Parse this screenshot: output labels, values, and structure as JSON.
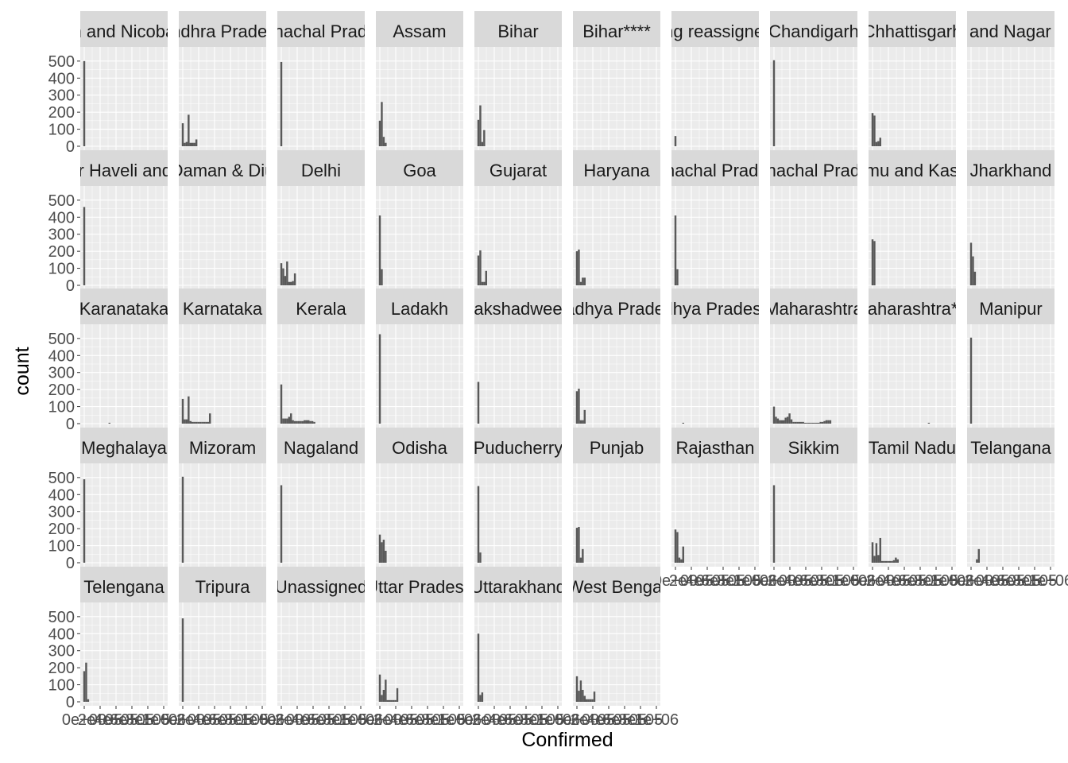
{
  "chart_data": {
    "type": "bar",
    "subtype": "faceted-histogram",
    "xlabel": "Confirmed",
    "ylabel": "count",
    "title": "",
    "ylim": [
      0,
      560
    ],
    "y_ticks": [
      0,
      100,
      200,
      300,
      400,
      500
    ],
    "x_tick_labels": [
      "0e+00",
      "2e+05",
      "4e+05",
      "6e+05",
      "8e+05",
      "1e+06"
    ],
    "grid": true,
    "colors": {
      "panel_bg": "#ebebeb",
      "strip_bg": "#d9d9d9",
      "bar": "#595959",
      "grid": "#ffffff"
    },
    "bins": 30,
    "facets": [
      {
        "label": "Andaman and Nicobar Islands",
        "counts": [
          500
        ]
      },
      {
        "label": "Andhra Pradesh",
        "counts": [
          135,
          20,
          25,
          185,
          20,
          20,
          20,
          40
        ]
      },
      {
        "label": "Arunachal Pradesh",
        "counts": [
          495
        ]
      },
      {
        "label": "Assam",
        "counts": [
          150,
          260,
          55,
          20
        ]
      },
      {
        "label": "Bihar",
        "counts": [
          155,
          240,
          25,
          95
        ]
      },
      {
        "label": "Bihar****",
        "counts": []
      },
      {
        "label": "Cases being reassigned to states",
        "counts": [
          60
        ]
      },
      {
        "label": "Chandigarh",
        "counts": [
          505
        ]
      },
      {
        "label": "Chhattisgarh",
        "counts": [
          195,
          180,
          25,
          30,
          50
        ]
      },
      {
        "label": "Dadra and Nagar Haveli",
        "counts": []
      },
      {
        "label": "Dadra and Nagar Haveli and Daman and Diu",
        "counts": [
          460
        ]
      },
      {
        "label": "Daman & Diu",
        "counts": []
      },
      {
        "label": "Delhi",
        "counts": [
          130,
          100,
          55,
          140,
          20,
          20,
          25,
          70
        ]
      },
      {
        "label": "Goa",
        "counts": [
          410,
          95
        ]
      },
      {
        "label": "Gujarat",
        "counts": [
          175,
          205,
          20,
          20,
          85
        ]
      },
      {
        "label": "Haryana",
        "counts": [
          200,
          210,
          20,
          45,
          45
        ]
      },
      {
        "label": "Himachal Pradesh",
        "counts": [
          410,
          95
        ]
      },
      {
        "label": "Arunachal Pradesh",
        "counts": []
      },
      {
        "label": "Jammu and Kashmir",
        "counts": [
          270,
          260
        ]
      },
      {
        "label": "Jharkhand",
        "counts": [
          250,
          170,
          80
        ]
      },
      {
        "label": "Karanataka",
        "counts": [
          0,
          0,
          0,
          0,
          0,
          0,
          0,
          0,
          0,
          0,
          0,
          0,
          0,
          5
        ]
      },
      {
        "label": "Karnataka",
        "counts": [
          145,
          25,
          25,
          160,
          15,
          10,
          10,
          10,
          10,
          10,
          10,
          10,
          10,
          10,
          60
        ]
      },
      {
        "label": "Kerala",
        "counts": [
          230,
          30,
          30,
          30,
          40,
          60,
          20,
          15,
          15,
          15,
          15,
          15,
          20,
          20,
          20,
          15,
          15,
          10
        ]
      },
      {
        "label": "Ladakh",
        "counts": [
          525
        ]
      },
      {
        "label": "Lakshadweep",
        "counts": [
          245
        ]
      },
      {
        "label": "Madhya Pradesh",
        "counts": [
          190,
          205,
          20,
          20,
          80
        ]
      },
      {
        "label": "Madhya Pradesh***",
        "counts": [
          0,
          0,
          0,
          0,
          5
        ]
      },
      {
        "label": "Maharashtra",
        "counts": [
          100,
          40,
          30,
          20,
          20,
          20,
          35,
          40,
          60,
          25,
          10,
          10,
          10,
          10,
          10,
          10,
          5,
          5,
          5,
          5,
          5,
          5,
          5,
          5,
          10,
          10,
          15,
          20,
          20,
          20
        ]
      },
      {
        "label": "Maharashtra***",
        "counts": [
          0,
          0,
          0,
          0,
          0,
          0,
          0,
          0,
          0,
          0,
          0,
          0,
          0,
          0,
          0,
          0,
          0,
          0,
          0,
          0,
          0,
          0,
          0,
          0,
          0,
          0,
          0,
          0,
          0,
          5
        ]
      },
      {
        "label": "Manipur",
        "counts": [
          505
        ]
      },
      {
        "label": "Meghalaya",
        "counts": [
          490
        ]
      },
      {
        "label": "Mizoram",
        "counts": [
          505
        ]
      },
      {
        "label": "Nagaland",
        "counts": [
          455
        ]
      },
      {
        "label": "Odisha",
        "counts": [
          165,
          120,
          135,
          70
        ]
      },
      {
        "label": "Puducherry",
        "counts": [
          450,
          60
        ]
      },
      {
        "label": "Punjab",
        "counts": [
          205,
          210,
          30,
          80
        ]
      },
      {
        "label": "Rajasthan",
        "counts": [
          195,
          180,
          30,
          20,
          95
        ]
      },
      {
        "label": "Sikkim",
        "counts": [
          455
        ]
      },
      {
        "label": "Tamil Nadu",
        "counts": [
          120,
          40,
          115,
          45,
          145,
          10,
          10,
          10,
          10,
          10,
          10,
          15,
          30,
          20
        ]
      },
      {
        "label": "Telangana",
        "counts": [
          0,
          0,
          0,
          20,
          80
        ]
      },
      {
        "label": "Telengana",
        "counts": [
          180,
          230,
          15
        ]
      },
      {
        "label": "Tripura",
        "counts": [
          490
        ]
      },
      {
        "label": "Unassigned",
        "counts": []
      },
      {
        "label": "Uttar Pradesh",
        "counts": [
          160,
          40,
          70,
          130,
          10,
          10,
          10,
          10,
          10,
          80
        ]
      },
      {
        "label": "Uttarakhand",
        "counts": [
          400,
          40,
          55
        ]
      },
      {
        "label": "West Bengal",
        "counts": [
          150,
          65,
          125,
          70,
          35,
          15,
          15,
          15,
          15,
          60
        ]
      }
    ]
  }
}
